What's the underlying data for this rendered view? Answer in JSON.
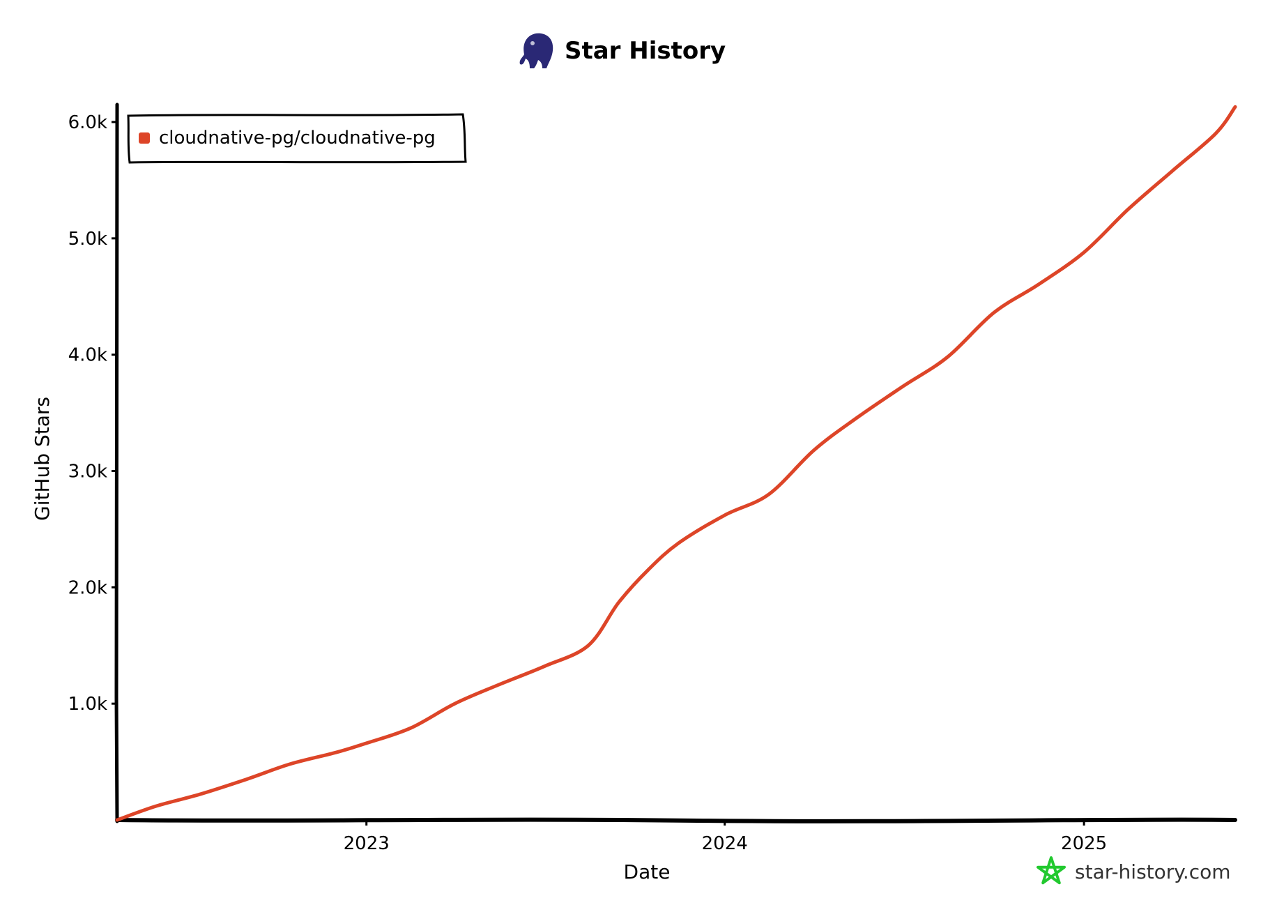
{
  "colors": {
    "series": "#dd4528",
    "axis": "#000000",
    "logo": "#2a2875",
    "watermark_icon": "#22c92f",
    "watermark_text": "#333333"
  },
  "logo_icon": "elephant-logo-icon",
  "watermark": {
    "icon": "pentagram-star-icon",
    "text": "star-history.com"
  },
  "chart_data": {
    "type": "line",
    "title": "Star History",
    "xlabel": "Date",
    "ylabel": "GitHub Stars",
    "legend_position": "top-left",
    "grid": false,
    "x_ticks": [
      "2023",
      "2024",
      "2025"
    ],
    "x_tick_dates": [
      "2023-01-01",
      "2024-01-01",
      "2025-01-01"
    ],
    "y_ticks": [
      "1.0k",
      "2.0k",
      "3.0k",
      "4.0k",
      "5.0k",
      "6.0k"
    ],
    "y_tick_values": [
      1000,
      2000,
      3000,
      4000,
      5000,
      6000
    ],
    "xlim": [
      "2022-04-22",
      "2025-06-04"
    ],
    "ylim": [
      0,
      6150
    ],
    "series": [
      {
        "name": "cloudnative-pg/cloudnative-pg",
        "x": [
          "2022-04-22",
          "2022-06-01",
          "2022-07-15",
          "2022-09-01",
          "2022-10-15",
          "2022-12-01",
          "2023-01-01",
          "2023-02-15",
          "2023-04-01",
          "2023-05-15",
          "2023-07-01",
          "2023-08-15",
          "2023-09-15",
          "2023-10-15",
          "2023-11-15",
          "2024-01-01",
          "2024-02-15",
          "2024-04-01",
          "2024-05-15",
          "2024-07-01",
          "2024-08-15",
          "2024-10-01",
          "2024-11-15",
          "2025-01-01",
          "2025-02-15",
          "2025-04-01",
          "2025-05-15",
          "2025-06-04"
        ],
        "y": [
          0,
          120,
          220,
          350,
          480,
          580,
          660,
          790,
          1000,
          1160,
          1320,
          1500,
          1870,
          2150,
          2380,
          2620,
          2800,
          3180,
          3460,
          3730,
          3980,
          4360,
          4600,
          4880,
          5250,
          5580,
          5900,
          6130
        ]
      }
    ]
  }
}
